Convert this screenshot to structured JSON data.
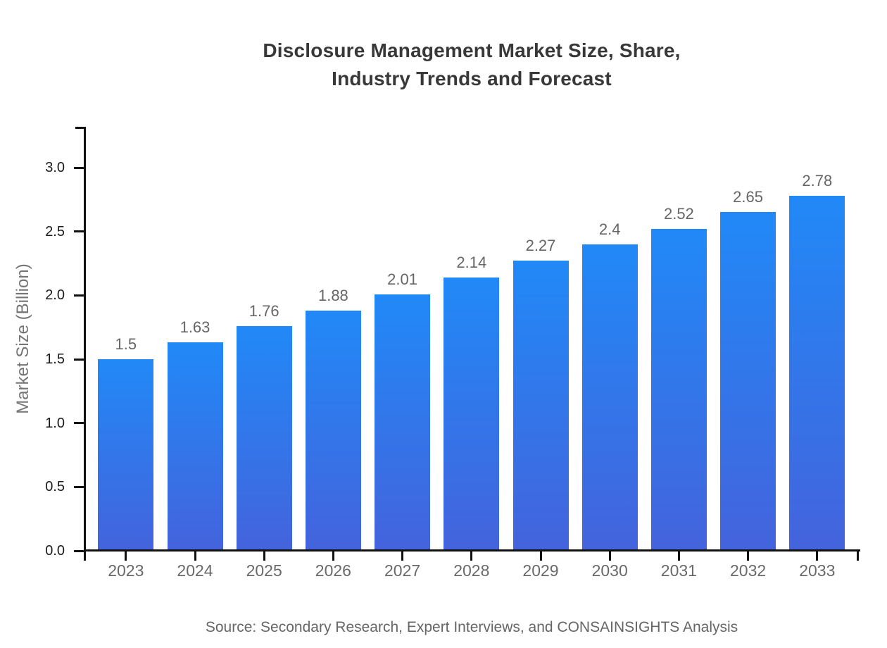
{
  "title": {
    "line1": "Disclosure Management Market Size, Share,",
    "line2": "Industry Trends and Forecast"
  },
  "source": "Source: Secondary Research, Expert Interviews, and CONSAINSIGHTS Analysis",
  "colors": {
    "bar_gradient_top": "#2189f7",
    "bar_gradient_bottom": "#4463dc",
    "axis_line": "#111111",
    "title_text": "#383838",
    "value_label_text": "#666666",
    "tick_label_text": "#1a1a1a",
    "year_label_text": "#696969",
    "axis_title_text": "#757575",
    "source_text": "#666666"
  },
  "chart_data": {
    "type": "bar",
    "title": "Disclosure Management Market Size, Share, Industry Trends and Forecast",
    "categories": [
      "2023",
      "2024",
      "2025",
      "2026",
      "2027",
      "2028",
      "2029",
      "2030",
      "2031",
      "2032",
      "2033"
    ],
    "values": [
      1.5,
      1.63,
      1.76,
      1.88,
      2.01,
      2.14,
      2.27,
      2.4,
      2.52,
      2.65,
      2.78
    ],
    "value_labels": [
      "1.5",
      "1.63",
      "1.76",
      "1.88",
      "2.01",
      "2.14",
      "2.27",
      "2.4",
      "2.52",
      "2.65",
      "2.78"
    ],
    "xlabel": "",
    "ylabel": "Market Size (Billion)",
    "ylim": [
      0,
      3.33
    ],
    "yticks": [
      0.0,
      0.5,
      1.0,
      1.5,
      2.0,
      2.5,
      3.0
    ],
    "ytick_labels": [
      "0.0",
      "0.5",
      "1.0",
      "1.5",
      "2.0",
      "2.5",
      "3.0"
    ],
    "grid": false,
    "legend": "none",
    "bar_color_top": "#2189f7",
    "bar_color_bottom": "#4463dc"
  }
}
